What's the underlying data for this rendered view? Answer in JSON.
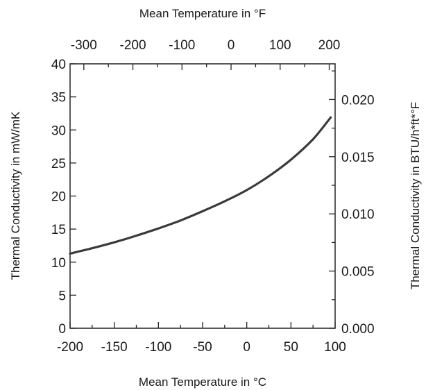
{
  "chart_data": {
    "type": "line",
    "title": "",
    "xlabel_bottom": "Mean Temperature in °C",
    "xlabel_top": "Mean Temperature in °F",
    "ylabel_left": "Thermal Conductivity in mW/mK",
    "ylabel_right": "Thermal Conductivity in BTU/h*ft*°F",
    "x_bottom": {
      "range": [
        -200,
        100
      ],
      "ticks": [
        -200,
        -150,
        -100,
        -50,
        0,
        50,
        100
      ],
      "tick_labels": [
        "-200",
        "-150",
        "-100",
        "-50",
        "0",
        "50",
        "100"
      ],
      "minor_step": 25
    },
    "x_top": {
      "unit": "°F",
      "ticks": [
        -300,
        -200,
        -100,
        0,
        100,
        200
      ],
      "tick_labels": [
        "-300",
        "-200",
        "-100",
        "0",
        "100",
        "200"
      ],
      "minor_step": 50
    },
    "y_left": {
      "range": [
        0,
        40
      ],
      "ticks": [
        0,
        5,
        10,
        15,
        20,
        25,
        30,
        35,
        40
      ],
      "tick_labels": [
        "0",
        "5",
        "10",
        "15",
        "20",
        "25",
        "30",
        "35",
        "40"
      ]
    },
    "y_right": {
      "unit": "BTU/h*ft*°F",
      "ticks": [
        0.0,
        0.005,
        0.01,
        0.015,
        0.02
      ],
      "tick_labels": [
        "0.000",
        "0.005",
        "0.010",
        "0.015",
        "0.020"
      ],
      "minor_step": 0.0025
    },
    "grid": false,
    "legend": "none",
    "series": [
      {
        "color": "#3a3a3a",
        "x": [
          -200,
          -175,
          -150,
          -125,
          -100,
          -75,
          -50,
          -25,
          0,
          25,
          50,
          75,
          95
        ],
        "y": [
          11.3,
          12.1,
          13.0,
          14.0,
          15.1,
          16.3,
          17.7,
          19.2,
          20.9,
          23.0,
          25.5,
          28.6,
          31.9
        ]
      }
    ]
  }
}
